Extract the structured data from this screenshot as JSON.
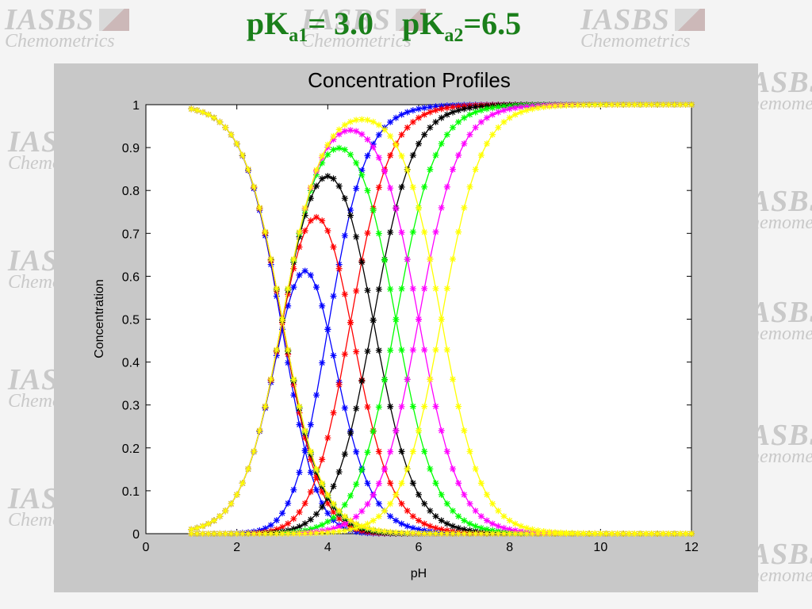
{
  "slide": {
    "title_part1_main": "pK",
    "title_part1_sub": "a1",
    "title_part1_rest": "= 3.0",
    "title_part2_main": "pK",
    "title_part2_sub": "a2",
    "title_part2_rest": "=6.5",
    "title_color": "#1a7f1a"
  },
  "watermark": {
    "line1": "IASBS",
    "line2": "Chemometrics"
  },
  "chart_data": {
    "type": "line",
    "title": "Concentration Profiles",
    "xlabel": "pH",
    "ylabel": "Concentration",
    "xlim": [
      0,
      12
    ],
    "ylim": [
      0,
      1
    ],
    "xticks": [
      0,
      2,
      4,
      6,
      8,
      10,
      12
    ],
    "yticks": [
      0,
      0.1,
      0.2,
      0.3,
      0.4,
      0.5,
      0.6,
      0.7,
      0.8,
      0.9,
      1
    ],
    "x_range": [
      1,
      12
    ],
    "pKa1": 3.0,
    "marker": "*",
    "grid": false,
    "series": [
      {
        "pKa2": 4.0,
        "color": "#0000ff"
      },
      {
        "pKa2": 4.5,
        "color": "#ff0000"
      },
      {
        "pKa2": 5.0,
        "color": "#000000"
      },
      {
        "pKa2": 5.5,
        "color": "#00ff00"
      },
      {
        "pKa2": 6.0,
        "color": "#ff00ff"
      },
      {
        "pKa2": 6.5,
        "color": "#ffff00"
      }
    ]
  }
}
